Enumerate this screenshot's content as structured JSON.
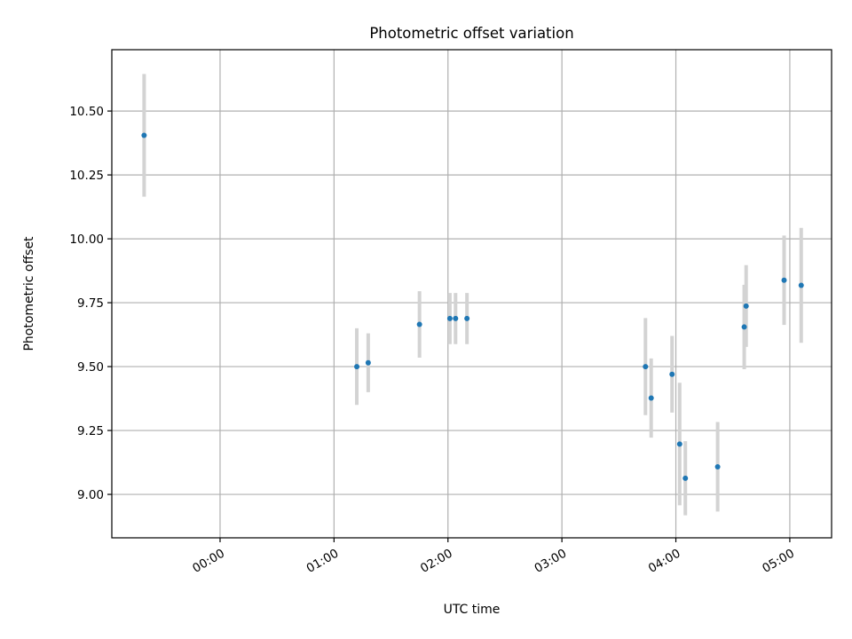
{
  "chart_data": {
    "type": "scatter",
    "title": "Photometric offset variation",
    "xlabel": "UTC time",
    "ylabel": "Photometric offset",
    "x_unit": "UTC time (HH:MM)",
    "xlim": [
      "-00:57",
      "05:22"
    ],
    "ylim": [
      8.83,
      10.74
    ],
    "grid": true,
    "x_ticks": [
      {
        "value": "00:00",
        "label": "00:00"
      },
      {
        "value": "01:00",
        "label": "01:00"
      },
      {
        "value": "02:00",
        "label": "02:00"
      },
      {
        "value": "03:00",
        "label": "03:00"
      },
      {
        "value": "04:00",
        "label": "04:00"
      },
      {
        "value": "05:00",
        "label": "05:00"
      }
    ],
    "y_ticks": [
      {
        "value": 9.0,
        "label": "9.00"
      },
      {
        "value": 9.25,
        "label": "9.25"
      },
      {
        "value": 9.5,
        "label": "9.50"
      },
      {
        "value": 9.75,
        "label": "9.75"
      },
      {
        "value": 10.0,
        "label": "10.00"
      },
      {
        "value": 10.25,
        "label": "10.25"
      },
      {
        "value": 10.5,
        "label": "10.50"
      }
    ],
    "series": [
      {
        "marker_color": "#1f77b4",
        "errorbar_color": "#d3d3d3",
        "points": [
          {
            "x": "-00:40",
            "y": 10.405,
            "err": 0.24
          },
          {
            "x": "01:12",
            "y": 9.5,
            "err": 0.15
          },
          {
            "x": "01:18",
            "y": 9.515,
            "err": 0.115
          },
          {
            "x": "01:45",
            "y": 9.665,
            "err": 0.13
          },
          {
            "x": "02:01",
            "y": 9.688,
            "err": 0.1
          },
          {
            "x": "02:04",
            "y": 9.688,
            "err": 0.1
          },
          {
            "x": "02:10",
            "y": 9.688,
            "err": 0.1
          },
          {
            "x": "03:44",
            "y": 9.5,
            "err": 0.19
          },
          {
            "x": "03:47",
            "y": 9.377,
            "err": 0.155
          },
          {
            "x": "03:58",
            "y": 9.47,
            "err": 0.15
          },
          {
            "x": "04:02",
            "y": 9.197,
            "err": 0.24
          },
          {
            "x": "04:05",
            "y": 9.063,
            "err": 0.145
          },
          {
            "x": "04:22",
            "y": 9.108,
            "err": 0.175
          },
          {
            "x": "04:36",
            "y": 9.655,
            "err": 0.165
          },
          {
            "x": "04:37",
            "y": 9.737,
            "err": 0.16
          },
          {
            "x": "04:57",
            "y": 9.838,
            "err": 0.175
          },
          {
            "x": "05:06",
            "y": 9.818,
            "err": 0.225
          }
        ]
      }
    ]
  }
}
